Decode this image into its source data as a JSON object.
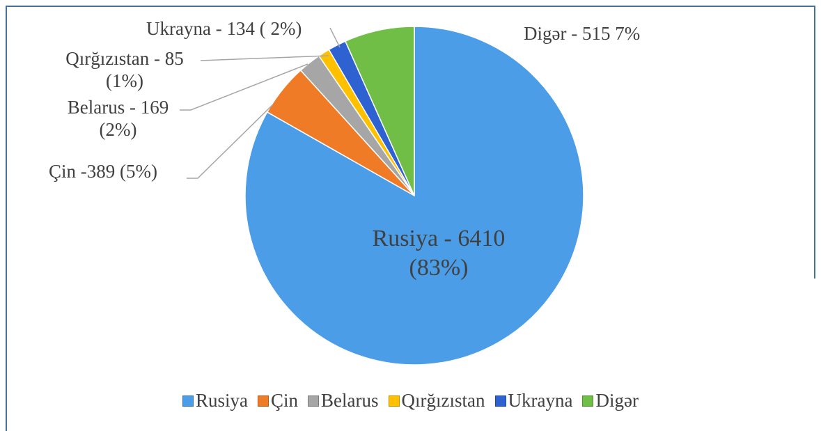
{
  "chart_data": {
    "type": "pie",
    "categories": [
      "Rusiya",
      "Çin",
      "Belarus",
      "Qırğızıstan",
      "Ukrayna",
      "Digər"
    ],
    "values": [
      6410,
      389,
      169,
      85,
      134,
      515
    ],
    "value_labels": [
      "Rusiya - 6410 (83%)",
      "Çin -389 (5%)",
      "Belarus - 169 (2%)",
      "Qırğızıstan - 85 (1%)",
      "Ukrayna - 134 ( 2%)",
      "Digər - 515 7%"
    ],
    "colors": [
      "#4a9de6",
      "#f07b27",
      "#a6a6a6",
      "#ffc000",
      "#2e62d0",
      "#70be45"
    ],
    "legend": "bottom"
  }
}
